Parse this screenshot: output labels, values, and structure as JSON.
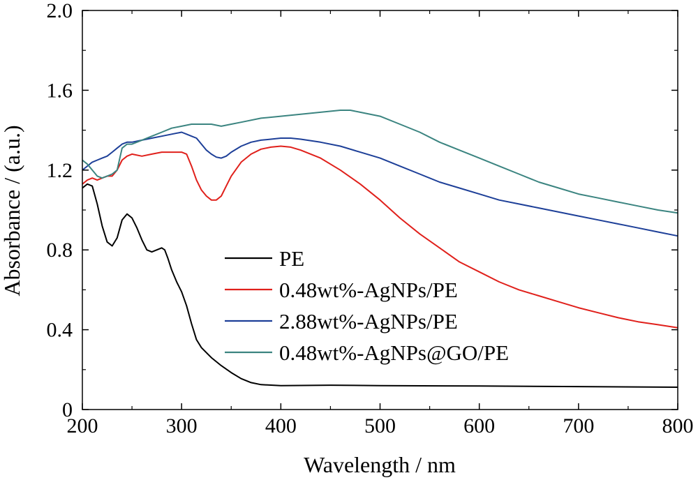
{
  "chart_data": {
    "type": "line",
    "title": "",
    "xlabel": "Wavelength / nm",
    "ylabel": "Absorbance / (a.u.)",
    "xlim": [
      200,
      800
    ],
    "ylim": [
      0,
      2.0
    ],
    "x_ticks": [
      200,
      300,
      400,
      500,
      600,
      700,
      800
    ],
    "x_tick_labels": [
      "200",
      "300",
      "400",
      "500",
      "600",
      "700",
      "800"
    ],
    "y_ticks": [
      0,
      0.4,
      0.8,
      1.2,
      1.6,
      2.0
    ],
    "y_tick_labels": [
      "0",
      "0.4",
      "0.8",
      "1.2",
      "1.6",
      "2.0"
    ],
    "grid": false,
    "legend_position": "center",
    "series": [
      {
        "name": "PE",
        "color": "#000000",
        "points": [
          [
            200,
            1.11
          ],
          [
            205,
            1.13
          ],
          [
            210,
            1.12
          ],
          [
            215,
            1.03
          ],
          [
            220,
            0.92
          ],
          [
            225,
            0.84
          ],
          [
            230,
            0.82
          ],
          [
            235,
            0.86
          ],
          [
            240,
            0.95
          ],
          [
            245,
            0.98
          ],
          [
            250,
            0.96
          ],
          [
            255,
            0.91
          ],
          [
            260,
            0.85
          ],
          [
            265,
            0.8
          ],
          [
            270,
            0.79
          ],
          [
            275,
            0.8
          ],
          [
            280,
            0.81
          ],
          [
            283,
            0.8
          ],
          [
            286,
            0.76
          ],
          [
            290,
            0.7
          ],
          [
            295,
            0.64
          ],
          [
            300,
            0.59
          ],
          [
            305,
            0.52
          ],
          [
            310,
            0.43
          ],
          [
            315,
            0.35
          ],
          [
            320,
            0.31
          ],
          [
            330,
            0.26
          ],
          [
            340,
            0.22
          ],
          [
            350,
            0.185
          ],
          [
            360,
            0.155
          ],
          [
            370,
            0.135
          ],
          [
            380,
            0.125
          ],
          [
            400,
            0.12
          ],
          [
            450,
            0.122
          ],
          [
            500,
            0.12
          ],
          [
            600,
            0.118
          ],
          [
            700,
            0.115
          ],
          [
            800,
            0.112
          ]
        ]
      },
      {
        "name": "0.48wt%-AgNPs/PE",
        "color": "#e0201b",
        "points": [
          [
            200,
            1.13
          ],
          [
            205,
            1.15
          ],
          [
            210,
            1.16
          ],
          [
            215,
            1.15
          ],
          [
            220,
            1.16
          ],
          [
            225,
            1.17
          ],
          [
            230,
            1.17
          ],
          [
            235,
            1.2
          ],
          [
            240,
            1.25
          ],
          [
            245,
            1.27
          ],
          [
            250,
            1.28
          ],
          [
            260,
            1.27
          ],
          [
            270,
            1.28
          ],
          [
            280,
            1.29
          ],
          [
            290,
            1.29
          ],
          [
            300,
            1.29
          ],
          [
            305,
            1.28
          ],
          [
            310,
            1.22
          ],
          [
            315,
            1.15
          ],
          [
            320,
            1.1
          ],
          [
            325,
            1.07
          ],
          [
            330,
            1.05
          ],
          [
            335,
            1.05
          ],
          [
            340,
            1.07
          ],
          [
            345,
            1.12
          ],
          [
            350,
            1.17
          ],
          [
            360,
            1.24
          ],
          [
            370,
            1.28
          ],
          [
            380,
            1.305
          ],
          [
            390,
            1.315
          ],
          [
            400,
            1.32
          ],
          [
            410,
            1.315
          ],
          [
            420,
            1.3
          ],
          [
            440,
            1.26
          ],
          [
            460,
            1.2
          ],
          [
            480,
            1.13
          ],
          [
            500,
            1.05
          ],
          [
            520,
            0.96
          ],
          [
            540,
            0.88
          ],
          [
            560,
            0.81
          ],
          [
            580,
            0.74
          ],
          [
            600,
            0.69
          ],
          [
            620,
            0.64
          ],
          [
            640,
            0.6
          ],
          [
            660,
            0.57
          ],
          [
            680,
            0.54
          ],
          [
            700,
            0.51
          ],
          [
            720,
            0.485
          ],
          [
            740,
            0.46
          ],
          [
            760,
            0.44
          ],
          [
            780,
            0.425
          ],
          [
            800,
            0.41
          ]
        ]
      },
      {
        "name": "2.88wt%-AgNPs/PE",
        "color": "#1d3f98",
        "points": [
          [
            200,
            1.2
          ],
          [
            205,
            1.22
          ],
          [
            210,
            1.24
          ],
          [
            215,
            1.25
          ],
          [
            220,
            1.26
          ],
          [
            225,
            1.27
          ],
          [
            230,
            1.29
          ],
          [
            235,
            1.31
          ],
          [
            240,
            1.33
          ],
          [
            245,
            1.34
          ],
          [
            250,
            1.34
          ],
          [
            260,
            1.35
          ],
          [
            270,
            1.36
          ],
          [
            280,
            1.37
          ],
          [
            290,
            1.38
          ],
          [
            300,
            1.39
          ],
          [
            305,
            1.38
          ],
          [
            310,
            1.37
          ],
          [
            315,
            1.36
          ],
          [
            320,
            1.33
          ],
          [
            325,
            1.3
          ],
          [
            330,
            1.28
          ],
          [
            335,
            1.265
          ],
          [
            340,
            1.26
          ],
          [
            345,
            1.27
          ],
          [
            350,
            1.29
          ],
          [
            360,
            1.32
          ],
          [
            370,
            1.34
          ],
          [
            380,
            1.35
          ],
          [
            390,
            1.355
          ],
          [
            400,
            1.36
          ],
          [
            410,
            1.36
          ],
          [
            420,
            1.355
          ],
          [
            440,
            1.34
          ],
          [
            460,
            1.32
          ],
          [
            480,
            1.29
          ],
          [
            500,
            1.26
          ],
          [
            520,
            1.22
          ],
          [
            540,
            1.18
          ],
          [
            560,
            1.14
          ],
          [
            580,
            1.11
          ],
          [
            600,
            1.08
          ],
          [
            620,
            1.05
          ],
          [
            640,
            1.03
          ],
          [
            660,
            1.01
          ],
          [
            680,
            0.99
          ],
          [
            700,
            0.97
          ],
          [
            720,
            0.95
          ],
          [
            740,
            0.93
          ],
          [
            760,
            0.91
          ],
          [
            780,
            0.89
          ],
          [
            800,
            0.87
          ]
        ]
      },
      {
        "name": "0.48wt%-AgNPs@GO/PE",
        "color": "#3b8480",
        "points": [
          [
            200,
            1.25
          ],
          [
            205,
            1.23
          ],
          [
            210,
            1.2
          ],
          [
            215,
            1.17
          ],
          [
            220,
            1.16
          ],
          [
            225,
            1.17
          ],
          [
            230,
            1.18
          ],
          [
            235,
            1.2
          ],
          [
            240,
            1.31
          ],
          [
            245,
            1.33
          ],
          [
            250,
            1.33
          ],
          [
            260,
            1.35
          ],
          [
            270,
            1.37
          ],
          [
            280,
            1.39
          ],
          [
            290,
            1.41
          ],
          [
            300,
            1.42
          ],
          [
            310,
            1.43
          ],
          [
            320,
            1.43
          ],
          [
            330,
            1.43
          ],
          [
            340,
            1.42
          ],
          [
            350,
            1.43
          ],
          [
            360,
            1.44
          ],
          [
            380,
            1.46
          ],
          [
            400,
            1.47
          ],
          [
            420,
            1.48
          ],
          [
            440,
            1.49
          ],
          [
            460,
            1.5
          ],
          [
            470,
            1.5
          ],
          [
            480,
            1.49
          ],
          [
            500,
            1.47
          ],
          [
            520,
            1.43
          ],
          [
            540,
            1.39
          ],
          [
            560,
            1.34
          ],
          [
            580,
            1.3
          ],
          [
            600,
            1.26
          ],
          [
            620,
            1.22
          ],
          [
            640,
            1.18
          ],
          [
            660,
            1.14
          ],
          [
            680,
            1.11
          ],
          [
            700,
            1.08
          ],
          [
            720,
            1.06
          ],
          [
            740,
            1.04
          ],
          [
            760,
            1.02
          ],
          [
            780,
            1.0
          ],
          [
            800,
            0.985
          ]
        ]
      }
    ]
  }
}
